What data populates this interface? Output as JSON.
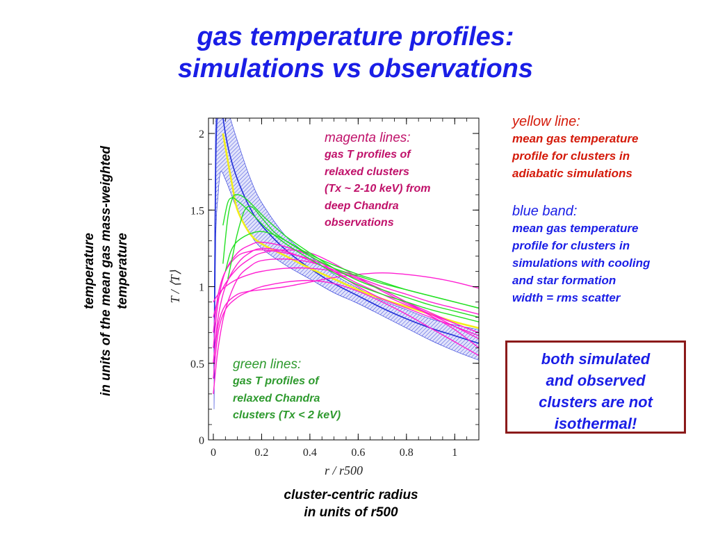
{
  "slide": {
    "title_line1": "gas temperature profiles:",
    "title_line2": "simulations vs observations",
    "ylabel_line1": "temperature",
    "ylabel_line2": "in units of the mean gas mass-weighted",
    "ylabel_line3": "temperature",
    "xlabel_line1": "cluster-centric radius",
    "xlabel_line2": "in units of r500"
  },
  "annotations": {
    "magenta": {
      "head": "magenta lines:",
      "lines": [
        "gas T profiles of",
        "relaxed clusters",
        "(Tx ~ 2-10 keV) from",
        "deep Chandra",
        "observations"
      ]
    },
    "green": {
      "head": "green lines:",
      "lines": [
        "gas T profiles of",
        "relaxed Chandra",
        "clusters (Tx < 2 keV)"
      ]
    },
    "yellow": {
      "head": "yellow line:",
      "lines": [
        "mean gas temperature",
        "profile for clusters in",
        "adiabatic simulations"
      ]
    },
    "blue": {
      "head": "blue band:",
      "lines": [
        "mean gas temperature",
        "profile for clusters in",
        "simulations with cooling",
        "and star formation",
        "width = rms scatter"
      ]
    },
    "callout_lines": [
      "both simulated",
      "and observed",
      "clusters are not",
      "isothermal!"
    ]
  },
  "colors": {
    "title": "#1a1ee6",
    "magenta": "#ff1fd2",
    "green": "#22e022",
    "yellow": "#f2ee1a",
    "blue_band": "#2230d8",
    "callout_border": "#8b1a1a"
  },
  "chart_data": {
    "type": "line",
    "xlabel": "r / r500",
    "ylabel": "T / ⟨T⟩",
    "xlim": [
      -0.02,
      1.1
    ],
    "ylim": [
      0,
      2.1
    ],
    "x_ticks": [
      "0",
      "0.2",
      "0.4",
      "0.6",
      "0.8",
      "1"
    ],
    "y_ticks": [
      "0",
      "0.5",
      "1",
      "1.5",
      "2"
    ],
    "blue_band": {
      "name": "cooling + star formation simulations (mean ± rms)",
      "x": [
        0.003,
        0.01,
        0.02,
        0.03,
        0.05,
        0.07,
        0.1,
        0.15,
        0.2,
        0.3,
        0.4,
        0.5,
        0.6,
        0.7,
        0.8,
        0.9,
        1.0,
        1.1
      ],
      "mean": [
        0.4,
        1.8,
        2.2,
        2.2,
        2.0,
        1.85,
        1.7,
        1.52,
        1.4,
        1.24,
        1.12,
        1.02,
        0.94,
        0.86,
        0.79,
        0.73,
        0.68,
        0.63
      ],
      "upper": [
        0.6,
        2.2,
        2.3,
        2.3,
        2.2,
        2.1,
        1.95,
        1.72,
        1.55,
        1.33,
        1.2,
        1.08,
        0.99,
        0.91,
        0.85,
        0.79,
        0.75,
        0.72
      ],
      "lower": [
        0.2,
        1.3,
        1.6,
        1.75,
        1.7,
        1.62,
        1.5,
        1.35,
        1.25,
        1.14,
        1.05,
        0.96,
        0.89,
        0.81,
        0.73,
        0.65,
        0.58,
        0.52
      ]
    },
    "yellow_line": {
      "x": [
        0.04,
        0.06,
        0.08,
        0.1,
        0.15,
        0.2,
        0.3,
        0.4,
        0.5,
        0.6,
        0.7,
        0.8,
        0.9,
        1.0,
        1.1
      ],
      "y": [
        2.0,
        1.82,
        1.65,
        1.5,
        1.35,
        1.28,
        1.2,
        1.12,
        1.05,
        0.98,
        0.92,
        0.87,
        0.82,
        0.77,
        0.73
      ]
    },
    "green_lines": [
      {
        "x": [
          0.04,
          0.06,
          0.08,
          0.1,
          0.13,
          0.17,
          0.22,
          0.3,
          0.4,
          0.5,
          0.6,
          0.7,
          0.8,
          0.9,
          1.0,
          1.1
        ],
        "y": [
          1.15,
          1.45,
          1.58,
          1.6,
          1.58,
          1.52,
          1.44,
          1.33,
          1.22,
          1.12,
          1.04,
          0.98,
          0.93,
          0.88,
          0.84,
          0.8
        ]
      },
      {
        "x": [
          0.04,
          0.06,
          0.08,
          0.1,
          0.13,
          0.17,
          0.22,
          0.3,
          0.4,
          0.5,
          0.6,
          0.7,
          0.8,
          0.9,
          1.0,
          1.1
        ],
        "y": [
          1.4,
          1.55,
          1.58,
          1.56,
          1.52,
          1.46,
          1.38,
          1.28,
          1.18,
          1.09,
          1.01,
          0.95,
          0.9,
          0.85,
          0.81,
          0.77
        ]
      },
      {
        "x": [
          0.05,
          0.07,
          0.09,
          0.12,
          0.16,
          0.2,
          0.25,
          0.3,
          0.4,
          0.5,
          0.6,
          0.7,
          0.8,
          0.9,
          1.0,
          1.1
        ],
        "y": [
          1.1,
          1.22,
          1.28,
          1.32,
          1.35,
          1.36,
          1.34,
          1.3,
          1.21,
          1.14,
          1.08,
          1.03,
          0.98,
          0.94,
          0.9,
          0.86
        ]
      },
      {
        "x": [
          0.06,
          0.08,
          0.1,
          0.13,
          0.16,
          0.2,
          0.25,
          0.3,
          0.35,
          0.4,
          0.5,
          0.6,
          0.7,
          0.8,
          0.9,
          1.0,
          1.1
        ],
        "y": [
          1.05,
          1.2,
          1.35,
          1.5,
          1.52,
          1.45,
          1.36,
          1.3,
          1.25,
          1.2,
          1.12,
          1.07,
          1.02,
          0.98,
          0.94,
          0.9,
          0.86
        ]
      }
    ],
    "magenta_lines": [
      {
        "x": [
          0.0,
          0.02,
          0.05,
          0.1,
          0.15,
          0.2,
          0.3,
          0.4,
          0.5,
          0.6,
          0.7,
          0.8,
          0.9,
          1.0,
          1.1
        ],
        "y": [
          0.6,
          0.9,
          1.1,
          1.22,
          1.27,
          1.29,
          1.26,
          1.2,
          1.1,
          1.0,
          0.92,
          0.86,
          0.8,
          0.74,
          0.68
        ]
      },
      {
        "x": [
          0.0,
          0.02,
          0.05,
          0.1,
          0.15,
          0.2,
          0.3,
          0.4,
          0.5,
          0.6,
          0.7,
          0.8,
          0.9,
          1.0,
          1.1
        ],
        "y": [
          0.5,
          0.8,
          1.0,
          1.15,
          1.22,
          1.25,
          1.23,
          1.17,
          1.1,
          1.02,
          0.95,
          0.88,
          0.82,
          0.76,
          0.7
        ]
      },
      {
        "x": [
          0.0,
          0.02,
          0.05,
          0.1,
          0.15,
          0.2,
          0.3,
          0.4,
          0.5,
          0.6,
          0.7,
          0.8,
          0.9,
          1.0,
          1.1
        ],
        "y": [
          0.8,
          0.92,
          1.02,
          1.12,
          1.18,
          1.22,
          1.24,
          1.22,
          1.15,
          1.06,
          0.97,
          0.89,
          0.82,
          0.74,
          0.66
        ]
      },
      {
        "x": [
          0.0,
          0.02,
          0.05,
          0.1,
          0.15,
          0.2,
          0.3,
          0.4,
          0.5,
          0.6,
          0.7,
          0.8,
          0.9,
          1.0,
          1.1
        ],
        "y": [
          0.3,
          0.6,
          0.85,
          1.05,
          1.13,
          1.17,
          1.18,
          1.16,
          1.11,
          1.05,
          0.98,
          0.9,
          0.81,
          0.72,
          0.6
        ]
      },
      {
        "x": [
          0.0,
          0.02,
          0.05,
          0.1,
          0.15,
          0.2,
          0.3,
          0.4,
          0.5,
          0.6,
          0.7,
          0.8,
          0.9,
          1.0,
          1.1
        ],
        "y": [
          0.9,
          0.95,
          1.0,
          1.05,
          1.08,
          1.1,
          1.12,
          1.12,
          1.1,
          1.05,
          0.98,
          0.9,
          0.83,
          0.76,
          0.7
        ]
      },
      {
        "x": [
          0.0,
          0.02,
          0.05,
          0.1,
          0.15,
          0.2,
          0.3,
          0.4,
          0.5,
          0.6,
          0.7,
          0.8,
          0.9,
          1.0,
          1.1
        ],
        "y": [
          0.5,
          0.75,
          0.88,
          0.95,
          0.97,
          0.98,
          1.0,
          1.03,
          1.06,
          1.08,
          1.09,
          1.08,
          1.06,
          1.03,
          0.99
        ]
      },
      {
        "x": [
          0.0,
          0.02,
          0.05,
          0.1,
          0.15,
          0.2,
          0.3,
          0.4,
          0.5,
          0.6,
          0.7,
          0.8,
          0.9,
          1.0,
          1.1
        ],
        "y": [
          0.4,
          0.7,
          0.85,
          0.93,
          0.97,
          1.0,
          1.03,
          1.04,
          1.02,
          0.97,
          0.9,
          0.82,
          0.73,
          0.64,
          0.55
        ]
      },
      {
        "x": [
          0.0,
          0.02,
          0.05,
          0.1,
          0.15,
          0.2,
          0.3,
          0.4,
          0.5,
          0.6,
          0.7,
          0.8,
          0.9,
          1.0,
          1.1
        ],
        "y": [
          0.7,
          0.95,
          1.1,
          1.2,
          1.23,
          1.24,
          1.22,
          1.18,
          1.12,
          1.06,
          1.0,
          0.95,
          0.9,
          0.86,
          0.82
        ]
      }
    ]
  }
}
